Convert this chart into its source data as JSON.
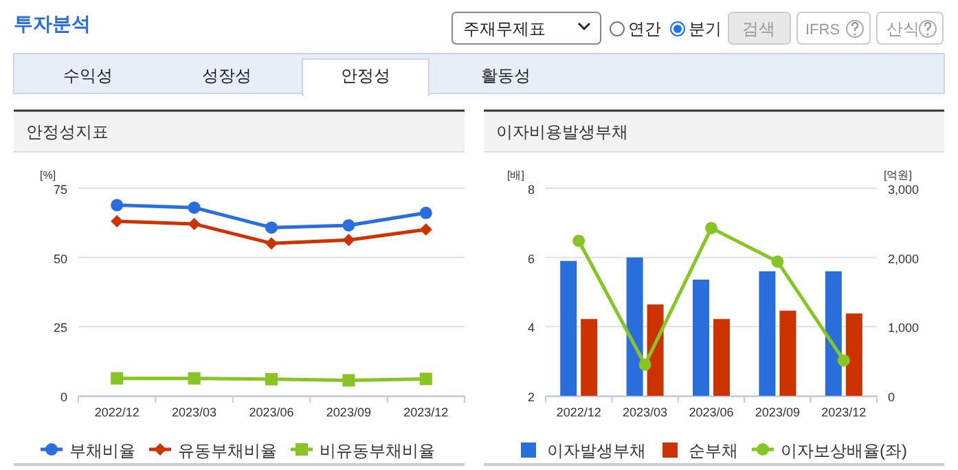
{
  "chart_data": [
    {
      "type": "other",
      "title": "투자분석",
      "annotations": [
        "주재무제표",
        "연간",
        "분기",
        "검색",
        "IFRS",
        "산식",
        "수익성",
        "성장성",
        "안정성",
        "활동성"
      ]
    },
    {
      "type": "line",
      "title": "안정성지표",
      "ylabel": "[%]",
      "categories": [
        "2022/12",
        "2023/03",
        "2023/06",
        "2023/09",
        "2023/12"
      ],
      "ylim": [
        0,
        75
      ],
      "yticks": [
        0,
        25,
        50,
        75
      ],
      "grid": "y",
      "legend": "bottom",
      "series": [
        {
          "name": "부채비율",
          "color": "#2a6edb",
          "marker": "circle",
          "values": [
            68.9,
            68.0,
            60.8,
            61.6,
            66.1
          ]
        },
        {
          "name": "유동부채비율",
          "color": "#cc3300",
          "marker": "diamond",
          "values": [
            63.1,
            62.1,
            55.1,
            56.3,
            60.1
          ]
        },
        {
          "name": "비유동부채비율",
          "color": "#88c425",
          "marker": "square",
          "values": [
            6.3,
            6.3,
            6.0,
            5.6,
            6.1
          ]
        }
      ]
    },
    {
      "type": "bar",
      "title": "이자비용발생부채",
      "ylabel": "[배]",
      "y2label": "[억원]",
      "categories": [
        "2022/12",
        "2023/03",
        "2023/06",
        "2023/09",
        "2023/12"
      ],
      "ylim": [
        2,
        8
      ],
      "yticks": [
        2,
        4,
        6,
        8
      ],
      "y2lim": [
        0,
        3000
      ],
      "y2ticks": [
        0,
        {
          "value": 1000,
          "label": "1,000"
        },
        {
          "value": 2000,
          "label": "2,000"
        },
        {
          "value": 3000,
          "label": "3,000"
        }
      ],
      "grid": "y",
      "legend": "bottom",
      "series": [
        {
          "name": "이자발생부채",
          "type": "bar",
          "axis": "y2",
          "color": "#2a6edb",
          "values": [
            1950,
            2000,
            1680,
            1800,
            1800
          ]
        },
        {
          "name": "순부채",
          "type": "bar",
          "axis": "y2",
          "color": "#cc3300",
          "values": [
            1110,
            1320,
            1110,
            1230,
            1190
          ]
        },
        {
          "name": "이자보상배율(좌)",
          "type": "line",
          "axis": "y",
          "color": "#88c425",
          "marker": "circle",
          "values": [
            6.48,
            2.9,
            6.85,
            5.88,
            3.02
          ]
        }
      ]
    }
  ]
}
